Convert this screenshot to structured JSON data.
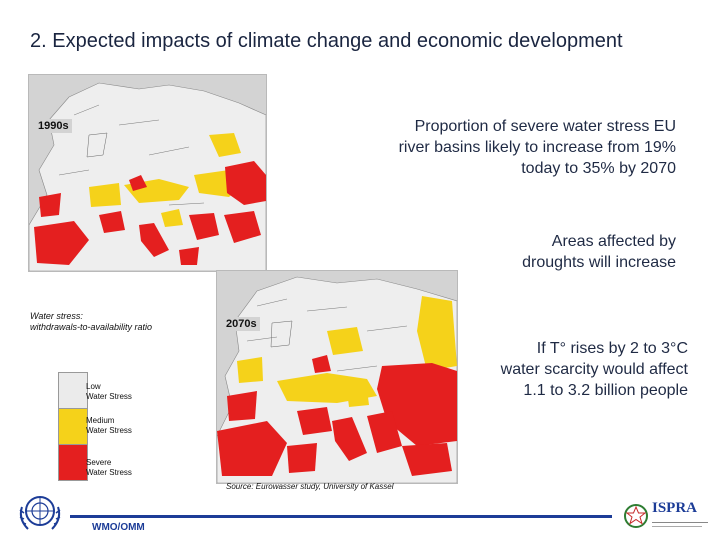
{
  "slide": {
    "title": "2. Expected impacts of climate change and economic development"
  },
  "maps": {
    "map_1990s_label": "1990s",
    "map_2070s_label": "2070s"
  },
  "statements": {
    "water_stress_lines": [
      "Proportion of severe water stress EU",
      "river basins likely to increase from 19%",
      "today to 35% by 2070"
    ],
    "droughts_lines": [
      "Areas affected by",
      "droughts will increase"
    ],
    "scarcity_lines": [
      "If T° rises by 2 to 3°C",
      "water scarcity would affect",
      "1.1 to 3.2 billion people"
    ]
  },
  "legend": {
    "heading_lines": [
      "Water stress:",
      "withdrawals-to-availability ratio"
    ],
    "items": [
      {
        "lines": [
          "Low",
          "Water Stress"
        ],
        "color": "#ebebeb"
      },
      {
        "lines": [
          "Medium",
          "Water Stress"
        ],
        "color": "#f5d21a"
      },
      {
        "lines": [
          "Severe",
          "Water Stress"
        ],
        "color": "#e41f1f"
      }
    ]
  },
  "source": "Source: Eurowasser study, University of Kassel",
  "footer": {
    "org_label": "WMO/OMM",
    "partner_logo_text": "ISPRA",
    "bar_color": "#1c3c97"
  }
}
